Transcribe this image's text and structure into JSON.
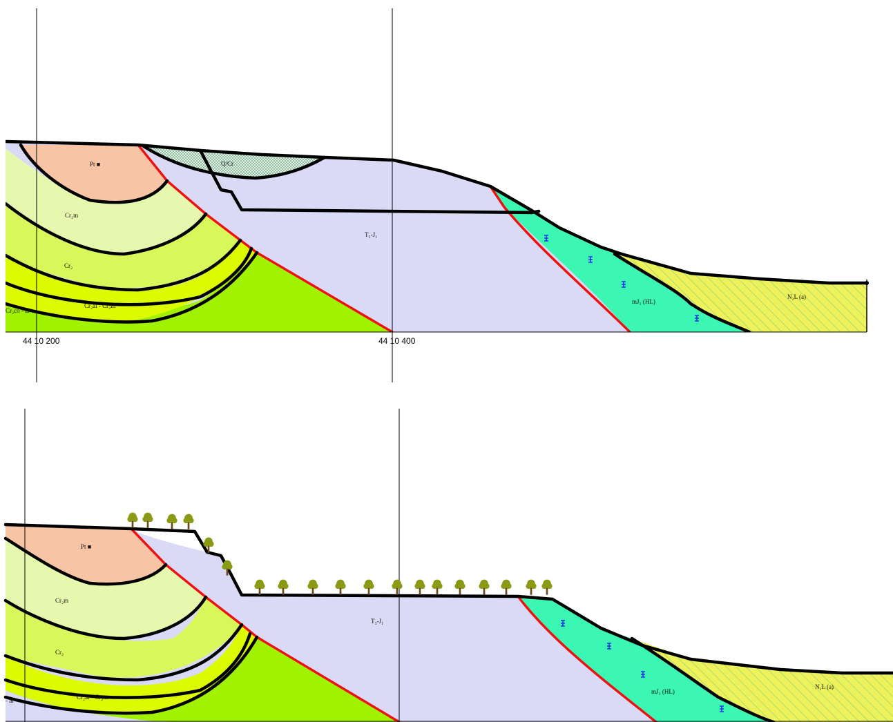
{
  "colors": {
    "red_rock": "#f7c4a5",
    "pale_green": "#e5f8ad",
    "mid_green": "#d8f75a",
    "yellow_green": "#dcfa00",
    "bright_green": "#a0f200",
    "lavender": "#dadaf6",
    "teal": "#3cf7b4",
    "yellow": "#eef25a",
    "hatch": "#8fcf7a",
    "stipple_bg": "#dff2e6",
    "fault": "#ee1111",
    "tree_crown": "#8a9a14",
    "tree_trunk": "#6b4a1a",
    "spring": "#2233dd"
  },
  "upper_section": {
    "units": {
      "pt": "Pt ■",
      "cr2m": "Cr₂m",
      "cr2": "Cr₂",
      "cr2al_cr2m": "Cr₂al - Cr₂m",
      "cr2co_al": "Cr₂co - al",
      "t3j1": "T₃-J₁",
      "mj1hl": "mJ₁ (HL)",
      "n2l": "N₂L (a)",
      "q": "Q/Cr"
    },
    "coord_labels": {
      "left": "44 10 200",
      "middle": "44 10 400"
    }
  },
  "lower_section": {
    "units": {
      "pt": "Pt ■",
      "cr2m": "Cr₂m",
      "cr2": "Cr₂",
      "cr2al_cr2m": "Cr₂al - Cr₂m",
      "al": "- al",
      "t3j1": "T₃-J₁",
      "mj1hl": "mJ₁ (HL)",
      "n2l": "N₂L (a)"
    }
  }
}
